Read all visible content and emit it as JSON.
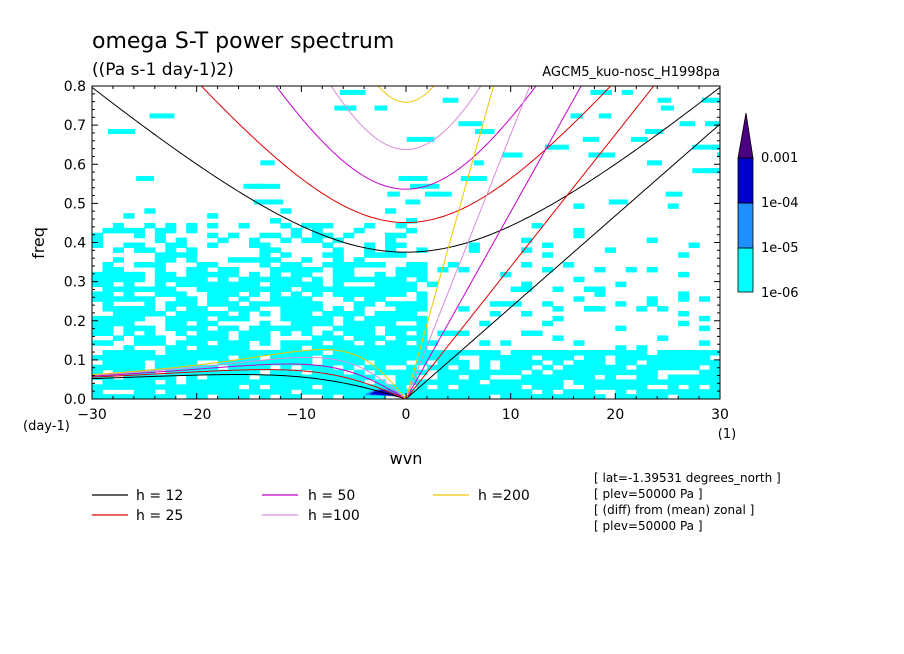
{
  "chart_data": {
    "type": "contour",
    "title": "omega S-T power spectrum",
    "units": "((Pa s-1 day-1)2)",
    "dataset": "AGCM5_kuo-nosc_H1998pa",
    "xlabel": "wvn",
    "ylabel": "freq",
    "x_unit": "(1)",
    "y_unit": "(day-1)",
    "xlim": [
      -30,
      30
    ],
    "ylim": [
      0,
      0.8
    ],
    "x_ticks": [
      -30,
      -20,
      -10,
      0,
      10,
      20,
      30
    ],
    "x_tick_labels": [
      "−30",
      "−20",
      "−10",
      "0",
      "10",
      "20",
      "30"
    ],
    "y_ticks": [
      0,
      0.1,
      0.2,
      0.3,
      0.4,
      0.5,
      0.6,
      0.7,
      0.8
    ],
    "y_tick_labels": [
      "0.0",
      "0.1",
      "0.2",
      "0.3",
      "0.4",
      "0.5",
      "0.6",
      "0.7",
      "0.8"
    ],
    "colorbar": {
      "levels": [
        "1e-06",
        "1e-05",
        "1e-04",
        "0.001"
      ],
      "colors": [
        "#00ffff",
        "#1e90ff",
        "#0000cd",
        "#4b0082"
      ]
    },
    "dispersion_curves": [
      {
        "label": "h = 12",
        "h": 12,
        "color": "#000000"
      },
      {
        "label": "h = 25",
        "h": 25,
        "color": "#e00000"
      },
      {
        "label": "h = 50",
        "h": 50,
        "color": "#c800c8"
      },
      {
        "label": "h =100",
        "h": 100,
        "color": "#d98cd9"
      },
      {
        "label": "h =200",
        "h": 200,
        "color": "#f0c800"
      }
    ],
    "info_lines": [
      "[ lat=-1.39531 degrees_north ]",
      "[ plev=50000 Pa ]",
      "[ (diff) from (mean) zonal ]",
      "[ plev=50000 Pa ]"
    ]
  }
}
